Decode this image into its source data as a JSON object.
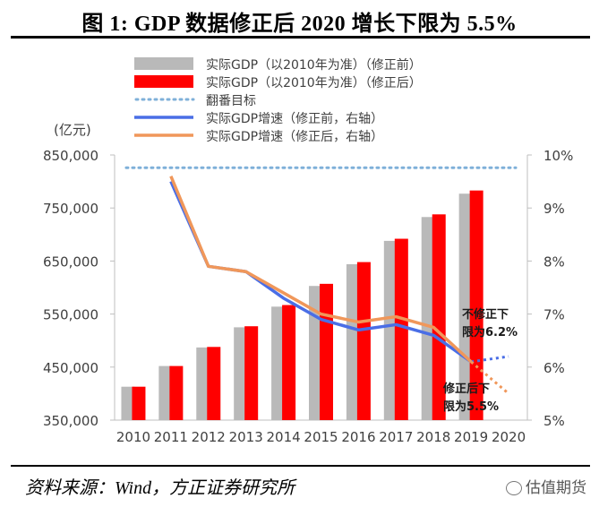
{
  "title": "图 1: GDP 数据修正后 2020 增长下限为 5.5%",
  "source": "资料来源：Wind，方正证券研究所",
  "watermark": "估值期货",
  "colors": {
    "gray": "#b9b9b9",
    "red": "#ff0000",
    "dotted": "#7fb0d9",
    "blue": "#4a6ee6",
    "orange": "#f0975a",
    "axis_text": "#404040"
  },
  "chart_data": {
    "type": "bar",
    "categories": [
      "2010",
      "2011",
      "2012",
      "2013",
      "2014",
      "2015",
      "2016",
      "2017",
      "2018",
      "2019",
      "2020"
    ],
    "left_axis": {
      "label": "(亿元)",
      "range": [
        350000,
        850000
      ],
      "ticks": [
        "350,000",
        "450,000",
        "550,000",
        "650,000",
        "750,000",
        "850,000"
      ],
      "tick_values": [
        350000,
        450000,
        550000,
        650000,
        750000,
        850000
      ]
    },
    "right_axis": {
      "range": [
        5,
        10
      ],
      "ticks": [
        "5%",
        "6%",
        "7%",
        "8%",
        "9%",
        "10%"
      ],
      "tick_values": [
        5,
        6,
        7,
        8,
        9,
        10
      ]
    },
    "series": [
      {
        "name": "实际GDP（以2010年为准）（修正前）",
        "kind": "bar",
        "color": "gray",
        "values": [
          413000,
          452000,
          487000,
          525000,
          564000,
          603000,
          644000,
          688000,
          733000,
          777000,
          null
        ]
      },
      {
        "name": "实际GDP（以2010年为准）（修正后）",
        "kind": "bar",
        "color": "red",
        "values": [
          413000,
          452000,
          488000,
          527000,
          567000,
          607000,
          648000,
          692000,
          738000,
          783000,
          null
        ]
      },
      {
        "name": "翻番目标",
        "kind": "hline",
        "color": "dotted",
        "axis": "left",
        "value": 826000
      },
      {
        "name": "实际GDP增速（修正前，右轴）",
        "kind": "line",
        "color": "blue",
        "axis": "right",
        "values": [
          null,
          9.5,
          7.9,
          7.8,
          7.3,
          6.9,
          6.7,
          6.8,
          6.6,
          6.1,
          null
        ],
        "extension": [
          6.1,
          6.2
        ]
      },
      {
        "name": "实际GDP增速（修正后，右轴）",
        "kind": "line",
        "color": "orange",
        "axis": "right",
        "values": [
          null,
          9.6,
          7.9,
          7.8,
          7.4,
          7.0,
          6.85,
          6.95,
          6.75,
          6.1,
          null
        ],
        "extension": [
          6.1,
          5.5
        ]
      }
    ],
    "annotations": [
      {
        "text_lines": [
          "不修正下",
          "限为6.2%"
        ]
      },
      {
        "text_lines": [
          "修正后下",
          "限为5.5%"
        ]
      }
    ],
    "grid": false,
    "legend": "top-left"
  }
}
